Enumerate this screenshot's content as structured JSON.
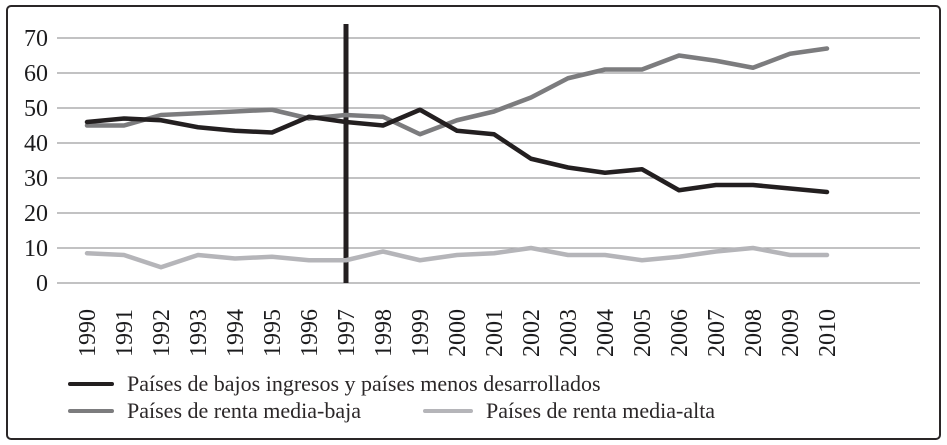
{
  "chart_data": {
    "type": "line",
    "title": "",
    "xlabel": "",
    "ylabel": "",
    "categories": [
      "1990",
      "1991",
      "1992",
      "1993",
      "1994",
      "1995",
      "1996",
      "1997",
      "1998",
      "1999",
      "2000",
      "2001",
      "2002",
      "2003",
      "2004",
      "2005",
      "2006",
      "2007",
      "2008",
      "2009",
      "2010"
    ],
    "series": [
      {
        "name": "Países de bajos ingresos y países menos desarrollados",
        "color": "#231f20",
        "stroke_width": 4.5,
        "values": [
          46,
          47,
          46.5,
          44.5,
          43.5,
          43,
          47.5,
          46,
          45,
          49.5,
          43.5,
          42.5,
          35.5,
          33,
          31.5,
          32.5,
          26.5,
          28,
          28,
          27,
          26
        ]
      },
      {
        "name": "Países de renta media-baja",
        "color": "#7c7c7e",
        "stroke_width": 4.5,
        "values": [
          45,
          45,
          48,
          48.5,
          49,
          49.5,
          47,
          48,
          47.5,
          42.5,
          46.5,
          49,
          53,
          58.5,
          61,
          61,
          65,
          63.5,
          61.5,
          65.5,
          67
        ]
      },
      {
        "name": "Países de renta media-alta",
        "color": "#b5b5b9",
        "stroke_width": 4.5,
        "values": [
          8.5,
          8,
          4.5,
          8,
          7,
          7.5,
          6.5,
          6.5,
          9,
          6.5,
          8,
          8.5,
          10,
          8,
          8,
          6.5,
          7.5,
          9,
          10,
          8,
          8
        ]
      }
    ],
    "yticks": [
      0,
      10,
      20,
      30,
      40,
      50,
      60,
      70
    ],
    "ylim": [
      0,
      70
    ],
    "grid": true,
    "grid_color": "#9d9d9f",
    "axis_text_color": "#1c1c1e",
    "vline_category": "1997",
    "vline_color": "#231f20",
    "vline_width": 5,
    "legend_position": "bottom"
  }
}
